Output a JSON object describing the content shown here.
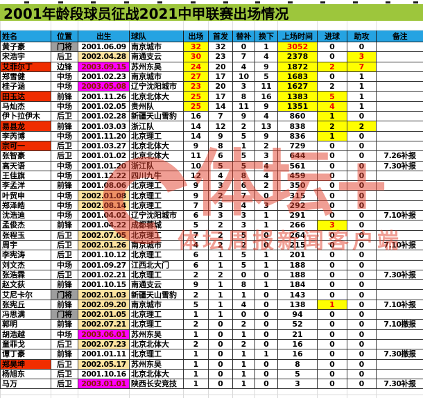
{
  "title": "2001年龄段球员征战2021中甲联赛出场情况",
  "watermark": {
    "logo": "体坛+",
    "tagline": "体坛周报新闻客户端"
  },
  "colors": {
    "title_bg": "#9DC63C",
    "header_bg": "#25A3E2",
    "highlight_yellow": "#FFFF00",
    "name_red": "#F02D00",
    "keeper_gray": "#9E9E9E",
    "birth_2002_tan": "#FCE3A0",
    "birth_2003_magenta": "#FF00FF",
    "red_text": "#EE0000",
    "watermark_red": "#E2402C"
  },
  "table": {
    "columns": [
      {
        "key": "name",
        "label": "姓名"
      },
      {
        "key": "pos",
        "label": "位置"
      },
      {
        "key": "birth",
        "label": "出生"
      },
      {
        "key": "team",
        "label": "球队"
      },
      {
        "key": "apps",
        "label": "出场"
      },
      {
        "key": "starts",
        "label": "首发"
      },
      {
        "key": "sub_in",
        "label": "替补"
      },
      {
        "key": "sub_out",
        "label": "换下"
      },
      {
        "key": "minutes",
        "label": "上场时间"
      },
      {
        "key": "goals",
        "label": "进球"
      },
      {
        "key": "assists",
        "label": "助攻"
      },
      {
        "key": "note",
        "label": "备注"
      }
    ],
    "rows": [
      {
        "name": "黄子豪",
        "pos": "门将",
        "birth": "2001.06.09",
        "team": "南京城市",
        "apps": "32",
        "starts": "32",
        "sub_in": "0",
        "sub_out": "1",
        "minutes": "3052",
        "goals": "0",
        "assists": "0",
        "note": "",
        "hl": {
          "pos": "gray",
          "apps": "yr",
          "minutes": "yr"
        }
      },
      {
        "name": "宋浩宇",
        "pos": "后卫",
        "birth": "2002.04.28",
        "team": "南通支云",
        "apps": "30",
        "starts": "23",
        "sub_in": "7",
        "sub_out": "4",
        "minutes": "2378",
        "goals": "0",
        "assists": "3",
        "note": "",
        "hl": {
          "birth": "tan",
          "apps": "yr",
          "minutes": "y",
          "assists": "yr"
        }
      },
      {
        "name": "艾菲尔丁",
        "pos": "边锋",
        "birth": "2003.09.15",
        "team": "苏州东吴",
        "apps": "24",
        "starts": "20",
        "sub_in": "4",
        "sub_out": "9",
        "minutes": "1872",
        "goals": "2",
        "assists": "7",
        "note": "",
        "hl": {
          "name": "red",
          "birth": "mag",
          "apps": "yr",
          "minutes": "y",
          "goals": "yr",
          "assists": "yr"
        }
      },
      {
        "name": "郑雪健",
        "pos": "中场",
        "birth": "2001.02.23",
        "team": "南京城市",
        "apps": "27",
        "starts": "17",
        "sub_in": "10",
        "sub_out": "5",
        "minutes": "1683",
        "goals": "0",
        "assists": "1",
        "note": "",
        "hl": {
          "apps": "yr",
          "minutes": "y"
        }
      },
      {
        "name": "桂子涵",
        "pos": "中场",
        "birth": "2003.05.08",
        "team": "辽宁沈阳城市",
        "apps": "23",
        "starts": "20",
        "sub_in": "3",
        "sub_out": "11",
        "minutes": "1627",
        "goals": "2",
        "assists": "1",
        "note": "",
        "hl": {
          "birth": "mag",
          "apps": "yr",
          "minutes": "y"
        }
      },
      {
        "name": "田玉达",
        "pos": "前锋",
        "birth": "2001.11.26",
        "team": "北京北体大",
        "apps": "25",
        "starts": "17",
        "sub_in": "8",
        "sub_out": "16",
        "minutes": "1383",
        "goals": "5",
        "assists": "1",
        "note": "",
        "hl": {
          "name": "red",
          "apps": "yr",
          "minutes": "y",
          "goals": "yr"
        }
      },
      {
        "name": "马灿杰",
        "pos": "中场",
        "birth": "2001.02.05",
        "team": "贵州队",
        "apps": "25",
        "starts": "14",
        "sub_in": "11",
        "sub_out": "9",
        "minutes": "1351",
        "goals": "4",
        "assists": "1",
        "note": "",
        "hl": {
          "apps": "yr",
          "minutes": "y",
          "goals": "yr"
        }
      },
      {
        "name": "伊卜拉伊木",
        "pos": "后卫",
        "birth": "2001.02.28",
        "team": "新疆天山雪豹",
        "apps": "16",
        "starts": "7",
        "sub_in": "9",
        "sub_out": "4",
        "minutes": "860",
        "goals": "1",
        "assists": "0",
        "note": "",
        "hl": {
          "goals": "y"
        }
      },
      {
        "name": "易县龙",
        "pos": "前锋",
        "birth": "2001.03.03",
        "team": "浙江队",
        "apps": "14",
        "starts": "12",
        "sub_in": "2",
        "sub_out": "13",
        "minutes": "838",
        "goals": "2",
        "assists": "2",
        "note": "",
        "hl": {
          "name": "red",
          "goals": "y",
          "assists": "y"
        }
      },
      {
        "name": "李芮博",
        "pos": "中场",
        "birth": "2001.11.20",
        "team": "北京理工",
        "apps": "14",
        "starts": "9",
        "sub_in": "5",
        "sub_out": "9",
        "minutes": "836",
        "goals": "1",
        "assists": "0",
        "note": "",
        "hl": {
          "goals": "y"
        }
      },
      {
        "name": "宗可一",
        "pos": "后卫",
        "birth": "2001.03.27",
        "team": "北京北体大",
        "apps": "9",
        "starts": "8",
        "sub_in": "1",
        "sub_out": "2",
        "minutes": "729",
        "goals": "0",
        "assists": "0",
        "note": "",
        "hl": {
          "name": "red"
        }
      },
      {
        "name": "张智豪",
        "pos": "后卫",
        "birth": "2001.01.02",
        "team": "北京北体大",
        "apps": "11",
        "starts": "6",
        "sub_in": "5",
        "sub_out": "3",
        "minutes": "644",
        "goals": "0",
        "assists": "0",
        "note": "7.26补报",
        "hl": {}
      },
      {
        "name": "高天语",
        "pos": "中场",
        "birth": "2001.01.20",
        "team": "浙江队",
        "apps": "10",
        "starts": "5",
        "sub_in": "5",
        "sub_out": "4",
        "minutes": "561",
        "goals": "0",
        "assists": "0",
        "note": "7.30补报",
        "hl": {}
      },
      {
        "name": "王佳旗",
        "pos": "中场",
        "birth": "2001.12.22",
        "team": "四川九牛",
        "apps": "12",
        "starts": "4",
        "sub_in": "8",
        "sub_out": "4",
        "minutes": "459",
        "goals": "0",
        "assists": "0",
        "note": "",
        "hl": {}
      },
      {
        "name": "李孟洋",
        "pos": "前锋",
        "birth": "2001.08.06",
        "team": "北京理工",
        "apps": "9",
        "starts": "3",
        "sub_in": "6",
        "sub_out": "2",
        "minutes": "350",
        "goals": "0",
        "assists": "0",
        "note": "",
        "hl": {}
      },
      {
        "name": "叶贸申",
        "pos": "中场",
        "birth": "2002.01.08",
        "team": "北京理工",
        "apps": "9",
        "starts": "2",
        "sub_in": "7",
        "sub_out": "0",
        "minutes": "315",
        "goals": "0",
        "assists": "0",
        "note": "",
        "hl": {
          "birth": "tan"
        }
      },
      {
        "name": "郑泽皓",
        "pos": "中场",
        "birth": "2002.08.14",
        "team": "北京理工",
        "apps": "7",
        "starts": "3",
        "sub_in": "4",
        "sub_out": "3",
        "minutes": "292",
        "goals": "0",
        "assists": "0",
        "note": "",
        "hl": {
          "birth": "tan"
        }
      },
      {
        "name": "沈浩迪",
        "pos": "中场",
        "birth": "2001.04.02",
        "team": "辽宁沈阳城市",
        "apps": "6",
        "starts": "3",
        "sub_in": "3",
        "sub_out": "1",
        "minutes": "291",
        "goals": "0",
        "assists": "0",
        "note": "7.10补报",
        "hl": {}
      },
      {
        "name": "孟俊杰",
        "pos": "前锋",
        "birth": "2001.04.22",
        "team": "成都蓉城",
        "apps": "5",
        "starts": "2",
        "sub_in": "3",
        "sub_out": "1",
        "minutes": "266",
        "goals": "3",
        "assists": "0",
        "note": "",
        "hl": {
          "goals": "yr"
        }
      },
      {
        "name": "张程玉",
        "pos": "后卫",
        "birth": "2002.07.05",
        "team": "北京理工",
        "apps": "7",
        "starts": "2",
        "sub_in": "5",
        "sub_out": "0",
        "minutes": "264",
        "goals": "0",
        "assists": "0",
        "note": "",
        "hl": {
          "birth": "tan"
        }
      },
      {
        "name": "周宇",
        "pos": "后卫",
        "birth": "2002.01.26",
        "team": "南京城市",
        "apps": "4",
        "starts": "2",
        "sub_in": "2",
        "sub_out": "0",
        "minutes": "215",
        "goals": "0",
        "assists": "0",
        "note": "7.10补报",
        "hl": {
          "birth": "tan"
        }
      },
      {
        "name": "李宪涛",
        "pos": "后卫",
        "birth": "2001.10.12",
        "team": "北京理工",
        "apps": "6",
        "starts": "1",
        "sub_in": "5",
        "sub_out": "1",
        "minutes": "201",
        "goals": "0",
        "assists": "0",
        "note": "",
        "hl": {}
      },
      {
        "name": "刘文杰",
        "pos": "中场",
        "birth": "2001.09.27",
        "team": "江西北大门",
        "apps": "6",
        "starts": "1",
        "sub_in": "5",
        "sub_out": "1",
        "minutes": "188",
        "goals": "0",
        "assists": "0",
        "note": "",
        "hl": {}
      },
      {
        "name": "张浩霖",
        "pos": "后卫",
        "birth": "2001.02.21",
        "team": "北京理工",
        "apps": "2",
        "starts": "2",
        "sub_in": "0",
        "sub_out": "0",
        "minutes": "188",
        "goals": "0",
        "assists": "0",
        "note": "7.30补报",
        "hl": {}
      },
      {
        "name": "赵文荻",
        "pos": "前锋",
        "birth": "2001.10.15",
        "team": "南通支云",
        "apps": "9",
        "starts": "1",
        "sub_in": "8",
        "sub_out": "1",
        "minutes": "184",
        "goals": "0",
        "assists": "0",
        "note": "",
        "hl": {}
      },
      {
        "name": "艾尼卡尔",
        "pos": "门将",
        "birth": "2002.01.03",
        "team": "新疆天山雪豹",
        "apps": "2",
        "starts": "1",
        "sub_in": "1",
        "sub_out": "0",
        "minutes": "143",
        "goals": "0",
        "assists": "0",
        "note": "",
        "hl": {
          "pos": "gray",
          "birth": "tan"
        }
      },
      {
        "name": "张宪丘",
        "pos": "前锋",
        "birth": "2002.09.20",
        "team": "南京城市",
        "apps": "5",
        "starts": "1",
        "sub_in": "4",
        "sub_out": "0",
        "minutes": "138",
        "goals": "1",
        "assists": "0",
        "note": "7.10补报",
        "hl": {
          "birth": "tan",
          "goals": "yr"
        }
      },
      {
        "name": "冯思满",
        "pos": "门将",
        "birth": "2002.01.05",
        "team": "北京理工",
        "apps": "1",
        "starts": "1",
        "sub_in": "0",
        "sub_out": "0",
        "minutes": "94",
        "goals": "0",
        "assists": "0",
        "note": "",
        "hl": {
          "pos": "gray",
          "birth": "tan"
        }
      },
      {
        "name": "郭明",
        "pos": "前锋",
        "birth": "2002.07.21",
        "team": "北京理工",
        "apps": "2",
        "starts": "0",
        "sub_in": "2",
        "sub_out": "0",
        "minutes": "52",
        "goals": "0",
        "assists": "0",
        "note": "7.10撤报",
        "hl": {
          "birth": "tan"
        }
      },
      {
        "name": "胡浩越",
        "pos": "中场",
        "birth": "2003.06.01",
        "team": "苏州东吴",
        "apps": "1",
        "starts": "0",
        "sub_in": "1",
        "sub_out": "0",
        "minutes": "21",
        "goals": "0",
        "assists": "0",
        "note": "",
        "hl": {
          "birth": "mag"
        }
      },
      {
        "name": "童菲戈",
        "pos": "后卫",
        "birth": "2002.07.23",
        "team": "北京北体大",
        "apps": "2",
        "starts": "0",
        "sub_in": "2",
        "sub_out": "0",
        "minutes": "16",
        "goals": "0",
        "assists": "0",
        "note": "",
        "hl": {
          "birth": "tan"
        }
      },
      {
        "name": "谭丁豪",
        "pos": "前锋",
        "birth": "2001.01.11",
        "team": "北京理工",
        "apps": "1",
        "starts": "0",
        "sub_in": "1",
        "sub_out": "1",
        "minutes": "16",
        "goals": "0",
        "assists": "0",
        "note": "7.30撤报",
        "hl": {}
      },
      {
        "name": "郑昊坤",
        "pos": "后卫",
        "birth": "2002.05.17",
        "team": "苏州东吴",
        "apps": "1",
        "starts": "0",
        "sub_in": "1",
        "sub_out": "0",
        "minutes": "8",
        "goals": "0",
        "assists": "0",
        "note": "",
        "hl": {
          "name": "red",
          "birth": "tan"
        }
      },
      {
        "name": "杨旭东",
        "pos": "后卫",
        "birth": "2001.10.16",
        "team": "北京北体大",
        "apps": "1",
        "starts": "0",
        "sub_in": "1",
        "sub_out": "0",
        "minutes": "5",
        "goals": "0",
        "assists": "0",
        "note": "",
        "hl": {}
      },
      {
        "name": "马万",
        "pos": "后卫",
        "birth": "2003.01.01",
        "team": "陕西长安竞技",
        "apps": "1",
        "starts": "0",
        "sub_in": "1",
        "sub_out": "0",
        "minutes": "3",
        "goals": "0",
        "assists": "0",
        "note": "7.30补报",
        "hl": {
          "birth": "mag"
        }
      }
    ]
  }
}
